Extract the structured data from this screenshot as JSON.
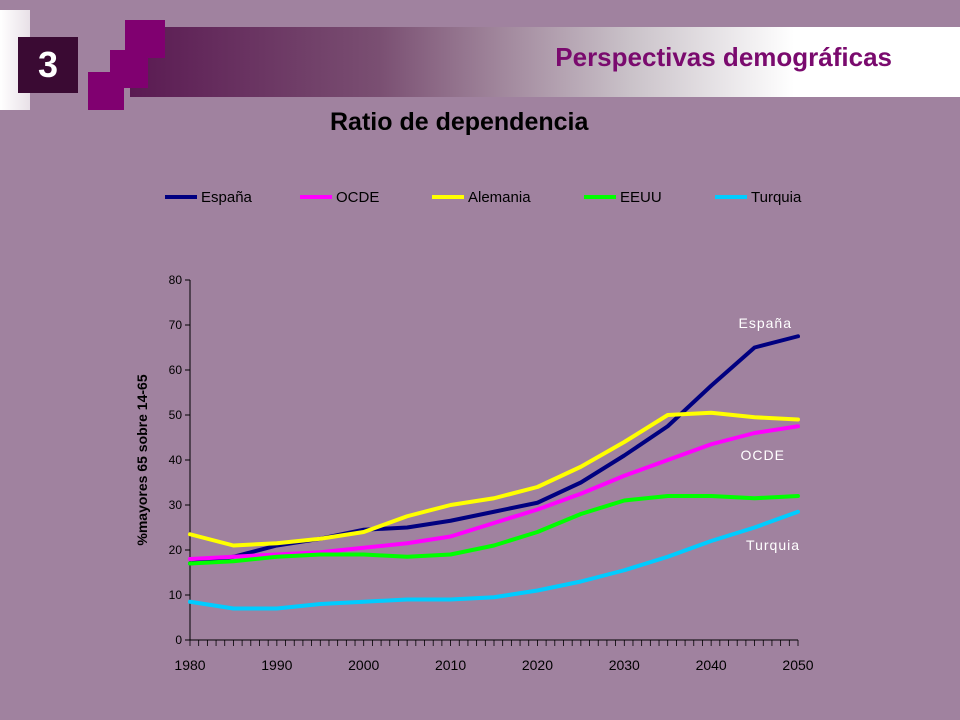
{
  "slide": {
    "number": "3",
    "title": "Perspectivas demográficas"
  },
  "colors": {
    "background": "#a0829f",
    "accent": "#7a0a6e"
  },
  "chart_data": {
    "type": "line",
    "title": "Ratio de dependencia",
    "ylabel": "%mayores 65 sobre 14-65",
    "xlabel": "",
    "xlim": [
      1980,
      2050
    ],
    "ylim": [
      0,
      80
    ],
    "xticks": [
      1980,
      1990,
      2000,
      2010,
      2020,
      2030,
      2040,
      2050
    ],
    "yticks": [
      0,
      10,
      20,
      30,
      40,
      50,
      60,
      70,
      80
    ],
    "legend_position": "top",
    "grid": false,
    "x": [
      1980,
      1985,
      1990,
      1995,
      2000,
      2005,
      2010,
      2015,
      2020,
      2025,
      2030,
      2035,
      2040,
      2045,
      2050
    ],
    "series": [
      {
        "name": "España",
        "color": "#000080",
        "label": "España",
        "values": [
          17,
          18.5,
          21,
          22.5,
          24.5,
          25,
          26.5,
          28.5,
          30.5,
          35,
          41,
          47.5,
          56.5,
          65,
          67.5
        ]
      },
      {
        "name": "OCDE",
        "color": "#ff00ff",
        "label": "OCDE",
        "values": [
          18,
          18.5,
          19,
          19.5,
          20.5,
          21.5,
          23,
          26,
          29,
          32.5,
          36.5,
          40,
          43.5,
          46,
          47.5
        ]
      },
      {
        "name": "Alemania",
        "color": "#ffff00",
        "label": "",
        "values": [
          23.5,
          21,
          21.5,
          22.5,
          24,
          27.5,
          30,
          31.5,
          34,
          38.5,
          44,
          50,
          50.5,
          49.5,
          49
        ]
      },
      {
        "name": "EEUU",
        "color": "#00ff00",
        "label": "",
        "values": [
          17,
          17.5,
          18.5,
          19,
          19,
          18.5,
          19,
          21,
          24,
          28,
          31,
          32,
          32,
          31.5,
          32
        ]
      },
      {
        "name": "Turquia",
        "color": "#00ccff",
        "label": "Turquia",
        "values": [
          8.5,
          7,
          7,
          8,
          8.5,
          9,
          9,
          9.5,
          11,
          13,
          15.5,
          18.5,
          22,
          25,
          28.5
        ]
      }
    ]
  }
}
